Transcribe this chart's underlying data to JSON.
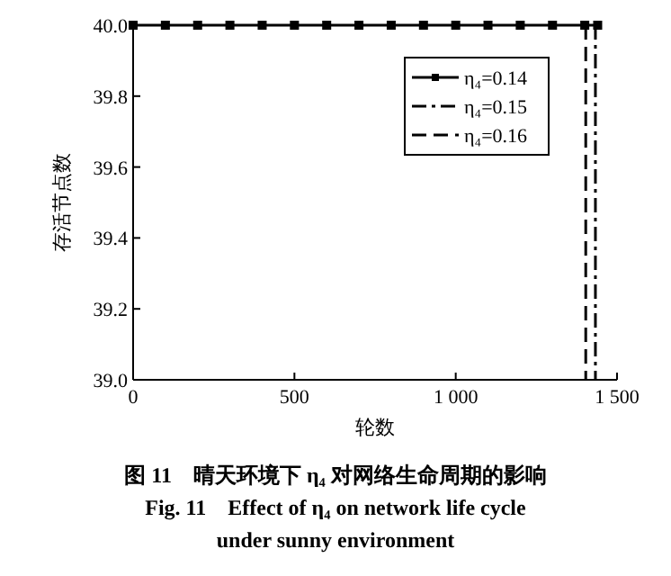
{
  "chart_data": {
    "type": "line",
    "xlabel": "轮数",
    "ylabel": "存活节点数",
    "xlim": [
      0,
      1500
    ],
    "ylim": [
      39.0,
      40.0
    ],
    "xticks": [
      0,
      500,
      {
        "value": 1000,
        "label": "1 000"
      },
      {
        "value": 1500,
        "label": "1 500"
      }
    ],
    "yticks": [
      {
        "value": 39.0,
        "label": "39.0"
      },
      39.2,
      39.4,
      39.6,
      39.8,
      {
        "value": 40.0,
        "label": "40.0"
      }
    ],
    "grid": false,
    "legend": "top right",
    "series": [
      {
        "name": "η₄=0.14",
        "color": "#000000",
        "line_style": "solid",
        "marker": "square",
        "x": [
          0,
          100,
          200,
          300,
          400,
          500,
          600,
          700,
          800,
          900,
          1000,
          1100,
          1200,
          1300,
          1400,
          1440
        ],
        "values": [
          40,
          40,
          40,
          40,
          40,
          40,
          40,
          40,
          40,
          40,
          40,
          40,
          40,
          40,
          40,
          40
        ]
      },
      {
        "name": "η₄=0.15",
        "color": "#000000",
        "line_style": "dashdot",
        "marker": "none",
        "x": [
          1433,
          1433
        ],
        "values": [
          40,
          39
        ]
      },
      {
        "name": "η₄=0.16",
        "color": "#000000",
        "line_style": "dashed",
        "marker": "none",
        "x": [
          1403,
          1403
        ],
        "values": [
          40,
          39
        ]
      }
    ],
    "annotations": [
      "图 11　晴天环境下 η₄ 对网络生命周期的影响",
      "Fig. 11　Effect of η₄ on network life cycle",
      "under sunny environment"
    ]
  }
}
